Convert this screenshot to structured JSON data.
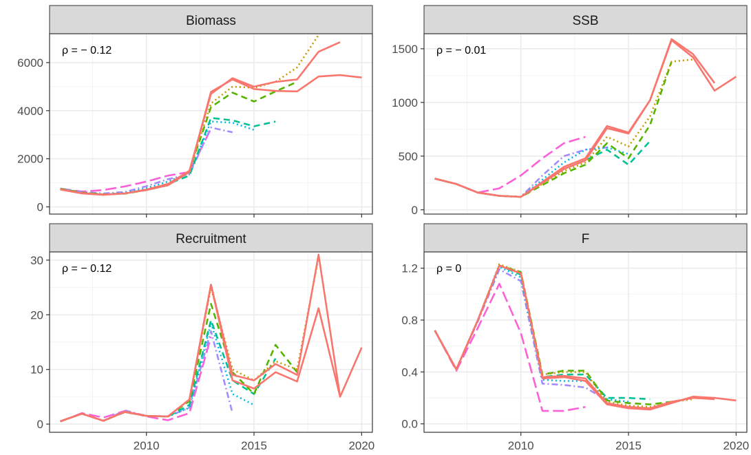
{
  "chart_data": {
    "type": "line",
    "layout": "2x2 facets",
    "series_colors": [
      "#F8766D",
      "#C49A00",
      "#53B400",
      "#00C094",
      "#00B6EB",
      "#A58AFF",
      "#FB61D7"
    ],
    "series_dash": [
      "solid",
      "dotted",
      "dashed",
      "dashed",
      "dotted",
      "dotdash",
      "longdash"
    ],
    "panels": [
      {
        "title": "Biomass",
        "rho_label": "ρ = − 0.12",
        "xlim": [
          2005.5,
          2020.5
        ],
        "ylim": [
          -300,
          7200
        ],
        "xticks": [
          2010,
          2015,
          2020
        ],
        "yticks": [
          0,
          2000,
          4000,
          6000
        ],
        "series": [
          {
            "x": [
              2006,
              2007,
              2008,
              2009,
              2010,
              2011,
              2012,
              2013,
              2014,
              2015,
              2016,
              2017,
              2018,
              2019,
              2020
            ],
            "y": [
              720,
              560,
              500,
              560,
              700,
              900,
              1450,
              4780,
              5300,
              4900,
              4820,
              4800,
              5420,
              5480,
              5380
            ]
          },
          {
            "x": [
              2006,
              2007,
              2008,
              2009,
              2010,
              2011,
              2012,
              2013,
              2014,
              2015,
              2016,
              2017,
              2018,
              2019
            ],
            "y": [
              730,
              570,
              510,
              560,
              720,
              950,
              1500,
              4700,
              5350,
              5000,
              5200,
              5300,
              6450,
              6850
            ]
          },
          {
            "x": [
              2006,
              2007,
              2008,
              2009,
              2010,
              2011,
              2012,
              2013,
              2014,
              2015,
              2016,
              2017,
              2018
            ],
            "y": [
              740,
              580,
              510,
              560,
              710,
              920,
              1500,
              4300,
              5000,
              4950,
              5200,
              5800,
              7150
            ]
          },
          {
            "x": [
              2006,
              2007,
              2008,
              2009,
              2010,
              2011,
              2012,
              2013,
              2014,
              2015,
              2016,
              2017
            ],
            "y": [
              750,
              590,
              520,
              550,
              700,
              900,
              1500,
              4150,
              4750,
              4380,
              4800,
              5200
            ]
          },
          {
            "x": [
              2006,
              2007,
              2008,
              2009,
              2010,
              2011,
              2012,
              2013,
              2014,
              2015,
              2016
            ],
            "y": [
              750,
              590,
              520,
              560,
              720,
              950,
              1300,
              3700,
              3600,
              3350,
              3550
            ]
          },
          {
            "x": [
              2006,
              2007,
              2008,
              2009,
              2010,
              2011,
              2012,
              2013,
              2014,
              2015
            ],
            "y": [
              760,
              590,
              520,
              580,
              780,
              1050,
              1400,
              3550,
              3500,
              3200
            ]
          },
          {
            "x": [
              2006,
              2007,
              2008,
              2009,
              2010,
              2011,
              2012,
              2013,
              2014
            ],
            "y": [
              760,
              620,
              560,
              620,
              860,
              1150,
              1350,
              3300,
              3100
            ]
          },
          {
            "x": [
              2006,
              2007,
              2008,
              2009,
              2010,
              2011,
              2012,
              2013
            ],
            "y": [
              760,
              640,
              700,
              850,
              1050,
              1300,
              1450,
              3250
            ]
          }
        ]
      },
      {
        "title": "SSB",
        "rho_label": "ρ = − 0.01",
        "xlim": [
          2005.5,
          2020.5
        ],
        "ylim": [
          -40,
          1640
        ],
        "xticks": [
          2010,
          2015,
          2020
        ],
        "yticks": [
          0,
          500,
          1000,
          1500
        ],
        "series": [
          {
            "x": [
              2006,
              2007,
              2008,
              2009,
              2010,
              2011,
              2012,
              2013,
              2014,
              2015,
              2016,
              2017,
              2018,
              2019,
              2020
            ],
            "y": [
              290,
              240,
              160,
              130,
              120,
              260,
              400,
              480,
              780,
              720,
              1020,
              1580,
              1420,
              1110,
              1240
            ]
          },
          {
            "x": [
              2006,
              2007,
              2008,
              2009,
              2010,
              2011,
              2012,
              2013,
              2014,
              2015,
              2016,
              2017,
              2018,
              2019
            ],
            "y": [
              290,
              240,
              160,
              130,
              120,
              250,
              380,
              460,
              760,
              710,
              1020,
              1590,
              1450,
              1180
            ]
          },
          {
            "x": [
              2006,
              2007,
              2008,
              2009,
              2010,
              2011,
              2012,
              2013,
              2014,
              2015,
              2016,
              2017,
              2018
            ],
            "y": [
              290,
              240,
              160,
              130,
              120,
              240,
              360,
              440,
              680,
              590,
              870,
              1380,
              1400
            ]
          },
          {
            "x": [
              2006,
              2007,
              2008,
              2009,
              2010,
              2011,
              2012,
              2013,
              2014,
              2015,
              2016,
              2017
            ],
            "y": [
              290,
              240,
              160,
              130,
              120,
              230,
              340,
              420,
              620,
              480,
              790,
              1380
            ]
          },
          {
            "x": [
              2006,
              2007,
              2008,
              2009,
              2010,
              2011,
              2012,
              2013,
              2014,
              2015,
              2016
            ],
            "y": [
              290,
              240,
              160,
              130,
              120,
              250,
              380,
              460,
              560,
              420,
              640
            ]
          },
          {
            "x": [
              2006,
              2007,
              2008,
              2009,
              2010,
              2011,
              2012,
              2013,
              2014,
              2015
            ],
            "y": [
              290,
              240,
              160,
              130,
              120,
              280,
              440,
              560,
              580,
              520
            ]
          },
          {
            "x": [
              2006,
              2007,
              2008,
              2009,
              2010,
              2011,
              2012,
              2013,
              2014
            ],
            "y": [
              290,
              240,
              160,
              130,
              120,
              320,
              500,
              560,
              580
            ]
          },
          {
            "x": [
              2006,
              2007,
              2008,
              2009,
              2010,
              2011,
              2012,
              2013
            ],
            "y": [
              290,
              240,
              160,
              200,
              320,
              480,
              620,
              680
            ]
          }
        ]
      },
      {
        "title": "Recruitment",
        "rho_label": "ρ = − 0.12",
        "xlim": [
          2005.5,
          2020.5
        ],
        "ylim": [
          -1.5,
          31.5
        ],
        "xticks": [
          2010,
          2015,
          2020
        ],
        "yticks": [
          0,
          10,
          20,
          30
        ],
        "series": [
          {
            "x": [
              2006,
              2007,
              2008,
              2009,
              2010,
              2011,
              2012,
              2013,
              2014,
              2015,
              2016,
              2017,
              2018,
              2019,
              2020
            ],
            "y": [
              0.5,
              1.9,
              0.6,
              2.3,
              1.5,
              1.4,
              4.5,
              25.5,
              8.0,
              6.5,
              9.5,
              7.8,
              21.2,
              5.0,
              14.0
            ]
          },
          {
            "x": [
              2006,
              2007,
              2008,
              2009,
              2010,
              2011,
              2012,
              2013,
              2014,
              2015,
              2016,
              2017,
              2018,
              2019
            ],
            "y": [
              0.5,
              1.9,
              0.6,
              2.2,
              1.5,
              1.4,
              4.5,
              25.5,
              9.0,
              8.0,
              11.0,
              9.0,
              31.0,
              5.0
            ]
          },
          {
            "x": [
              2006,
              2007,
              2008,
              2009,
              2010,
              2011,
              2012,
              2013,
              2014,
              2015,
              2016,
              2017,
              2018
            ],
            "y": [
              0.5,
              1.9,
              0.6,
              2.2,
              1.5,
              1.4,
              4.5,
              25.0,
              10.0,
              8.0,
              11.5,
              10.0,
              30.5
            ]
          },
          {
            "x": [
              2006,
              2007,
              2008,
              2009,
              2010,
              2011,
              2012,
              2013,
              2014,
              2015,
              2016,
              2017
            ],
            "y": [
              0.5,
              1.9,
              0.6,
              2.2,
              1.5,
              1.4,
              4.2,
              22.0,
              9.5,
              5.5,
              14.5,
              9.5
            ]
          },
          {
            "x": [
              2006,
              2007,
              2008,
              2009,
              2010,
              2011,
              2012,
              2013,
              2014,
              2015,
              2016
            ],
            "y": [
              0.5,
              1.9,
              0.6,
              2.2,
              1.5,
              1.4,
              3.5,
              19.0,
              8.0,
              5.5,
              12.0
            ]
          },
          {
            "x": [
              2006,
              2007,
              2008,
              2009,
              2010,
              2011,
              2012,
              2013,
              2014,
              2015
            ],
            "y": [
              0.5,
              1.9,
              0.6,
              2.2,
              1.5,
              1.4,
              3.0,
              18.5,
              5.5,
              3.5
            ]
          },
          {
            "x": [
              2006,
              2007,
              2008,
              2009,
              2010,
              2011,
              2012,
              2013,
              2014
            ],
            "y": [
              0.5,
              1.9,
              0.6,
              2.5,
              1.5,
              1.4,
              3.0,
              17.0,
              2.0
            ]
          },
          {
            "x": [
              2006,
              2007,
              2008,
              2009,
              2010,
              2011,
              2012,
              2013
            ],
            "y": [
              0.5,
              2.0,
              1.2,
              2.4,
              1.4,
              0.7,
              2.0,
              16.0
            ]
          }
        ]
      },
      {
        "title": "F",
        "rho_label": "ρ = 0",
        "xlim": [
          2005.5,
          2020.5
        ],
        "ylim": [
          -0.065,
          1.325
        ],
        "xticks": [
          2010,
          2015,
          2020
        ],
        "yticks": [
          0.0,
          0.4,
          0.8,
          1.2
        ],
        "ytick_labels": [
          "0.0",
          "0.4",
          "0.8",
          "1.2"
        ],
        "series": [
          {
            "x": [
              2006,
              2007,
              2008,
              2009,
              2010,
              2011,
              2012,
              2013,
              2014,
              2015,
              2016,
              2017,
              2018,
              2019,
              2020
            ],
            "y": [
              0.72,
              0.42,
              0.8,
              1.22,
              1.16,
              0.35,
              0.36,
              0.33,
              0.15,
              0.12,
              0.11,
              0.16,
              0.21,
              0.2,
              0.18
            ]
          },
          {
            "x": [
              2006,
              2007,
              2008,
              2009,
              2010,
              2011,
              2012,
              2013,
              2014,
              2015,
              2016,
              2017,
              2018,
              2019
            ],
            "y": [
              0.72,
              0.42,
              0.8,
              1.22,
              1.16,
              0.36,
              0.37,
              0.35,
              0.16,
              0.13,
              0.12,
              0.17,
              0.2,
              0.19
            ]
          },
          {
            "x": [
              2006,
              2007,
              2008,
              2009,
              2010,
              2011,
              2012,
              2013,
              2014,
              2015,
              2016,
              2017,
              2018
            ],
            "y": [
              0.72,
              0.42,
              0.8,
              1.23,
              1.17,
              0.38,
              0.4,
              0.4,
              0.17,
              0.14,
              0.13,
              0.17,
              0.19
            ]
          },
          {
            "x": [
              2006,
              2007,
              2008,
              2009,
              2010,
              2011,
              2012,
              2013,
              2014,
              2015,
              2016,
              2017
            ],
            "y": [
              0.72,
              0.42,
              0.8,
              1.22,
              1.17,
              0.38,
              0.41,
              0.41,
              0.18,
              0.16,
              0.15,
              0.17
            ]
          },
          {
            "x": [
              2006,
              2007,
              2008,
              2009,
              2010,
              2011,
              2012,
              2013,
              2014,
              2015,
              2016
            ],
            "y": [
              0.72,
              0.42,
              0.8,
              1.22,
              1.15,
              0.36,
              0.38,
              0.38,
              0.2,
              0.2,
              0.19
            ]
          },
          {
            "x": [
              2006,
              2007,
              2008,
              2009,
              2010,
              2011,
              2012,
              2013,
              2014,
              2015
            ],
            "y": [
              0.72,
              0.42,
              0.8,
              1.21,
              1.13,
              0.34,
              0.33,
              0.33,
              0.19,
              0.17
            ]
          },
          {
            "x": [
              2006,
              2007,
              2008,
              2009,
              2010,
              2011,
              2012,
              2013,
              2014
            ],
            "y": [
              0.72,
              0.42,
              0.79,
              1.19,
              1.1,
              0.31,
              0.3,
              0.28,
              0.18
            ]
          },
          {
            "x": [
              2006,
              2007,
              2008,
              2009,
              2010,
              2011,
              2012,
              2013
            ],
            "y": [
              0.72,
              0.41,
              0.74,
              1.08,
              0.7,
              0.1,
              0.1,
              0.13
            ]
          }
        ]
      }
    ]
  }
}
